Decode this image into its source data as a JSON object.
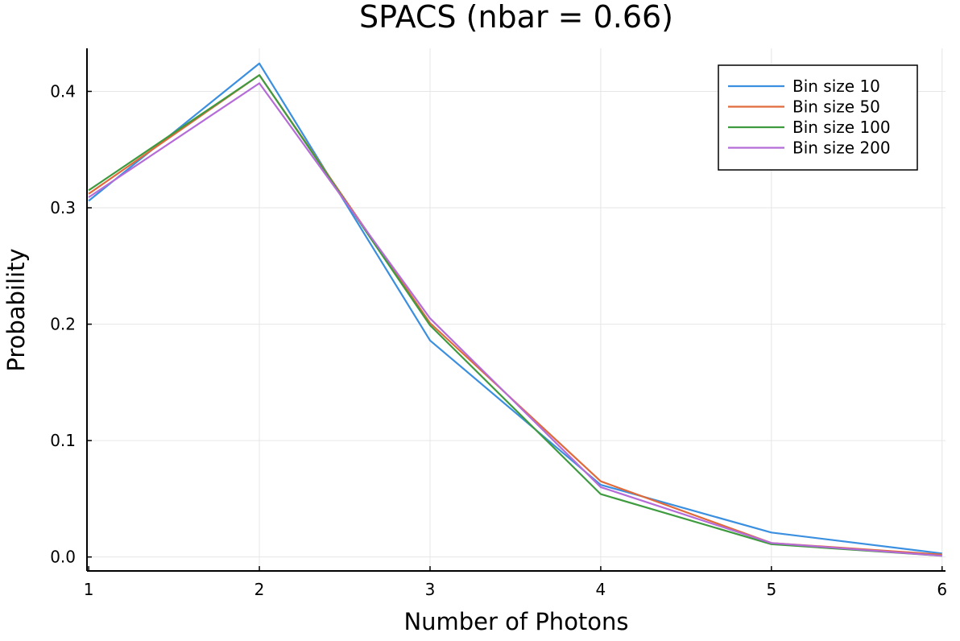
{
  "chart_data": {
    "type": "line",
    "title": "SPACS (nbar = 0.66)",
    "xlabel": "Number of Photons",
    "ylabel": "Probability",
    "x": [
      1,
      2,
      3,
      4,
      5,
      6
    ],
    "xticks": [
      "1",
      "2",
      "3",
      "4",
      "5",
      "6"
    ],
    "yticks": [
      "0.0",
      "0.1",
      "0.2",
      "0.3",
      "0.4"
    ],
    "xlim": [
      0.99,
      6.02
    ],
    "ylim": [
      -0.012,
      0.437
    ],
    "grid": true,
    "legend_position": "top-right",
    "series": [
      {
        "name": "Bin size 10",
        "color": "#3a8fe0",
        "values": [
          0.306,
          0.424,
          0.186,
          0.062,
          0.021,
          0.003
        ]
      },
      {
        "name": "Bin size 50",
        "color": "#e06a3a",
        "values": [
          0.312,
          0.414,
          0.201,
          0.065,
          0.012,
          0.002
        ]
      },
      {
        "name": "Bin size 100",
        "color": "#3f9b3f",
        "values": [
          0.315,
          0.414,
          0.199,
          0.054,
          0.011,
          0.001
        ]
      },
      {
        "name": "Bin size 200",
        "color": "#b56bd8",
        "values": [
          0.309,
          0.407,
          0.205,
          0.06,
          0.012,
          0.001
        ]
      }
    ]
  }
}
